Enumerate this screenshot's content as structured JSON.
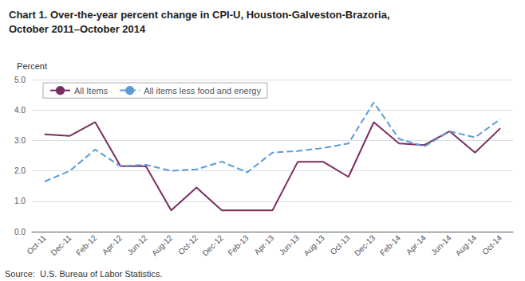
{
  "chart_data": {
    "type": "line",
    "title": "Chart 1. Over-the-year percent change in CPI-U, Houston-Galveston-Brazoria,\nOctober 2011–October 2014",
    "ylabel": "Percent",
    "annotations": [
      "Source:  U.S. Bureau of Labor Statistics."
    ],
    "categories": [
      "Oct-11",
      "Dec-11",
      "Feb-12",
      "Apr-12",
      "Jun-12",
      "Aug-12",
      "Oct-12",
      "Dec-12",
      "Feb-13",
      "Apr-13",
      "Jun-13",
      "Aug-13",
      "Oct-13",
      "Dec-13",
      "Feb-14",
      "Apr-14",
      "Jun-14",
      "Aug-14",
      "Oct-14"
    ],
    "series": [
      {
        "name": "All Items",
        "color": "#7b2d5e",
        "line_style": "solid",
        "values": [
          3.2,
          3.15,
          3.6,
          2.15,
          2.15,
          0.7,
          1.45,
          0.7,
          0.7,
          0.7,
          2.3,
          2.3,
          1.8,
          3.6,
          2.9,
          2.85,
          3.3,
          2.6,
          3.4
        ]
      },
      {
        "name": "All items less food and energy",
        "color": "#5b9bd5",
        "line_style": "dashed",
        "values": [
          1.65,
          2.0,
          2.7,
          2.15,
          2.2,
          2.0,
          2.05,
          2.3,
          1.95,
          2.6,
          2.65,
          2.75,
          2.9,
          4.25,
          3.05,
          2.8,
          3.3,
          3.1,
          3.7
        ]
      }
    ],
    "ylim": [
      0.0,
      5.0
    ],
    "yticks": [
      {
        "value": 0,
        "label": "0.0"
      },
      {
        "value": 1,
        "label": "1.0"
      },
      {
        "value": 2,
        "label": "2.0"
      },
      {
        "value": 3,
        "label": "3.0"
      },
      {
        "value": 4,
        "label": "4.0"
      },
      {
        "value": 5,
        "label": "5.0"
      }
    ],
    "grid": true,
    "legend": "upper left",
    "marker": "none"
  }
}
